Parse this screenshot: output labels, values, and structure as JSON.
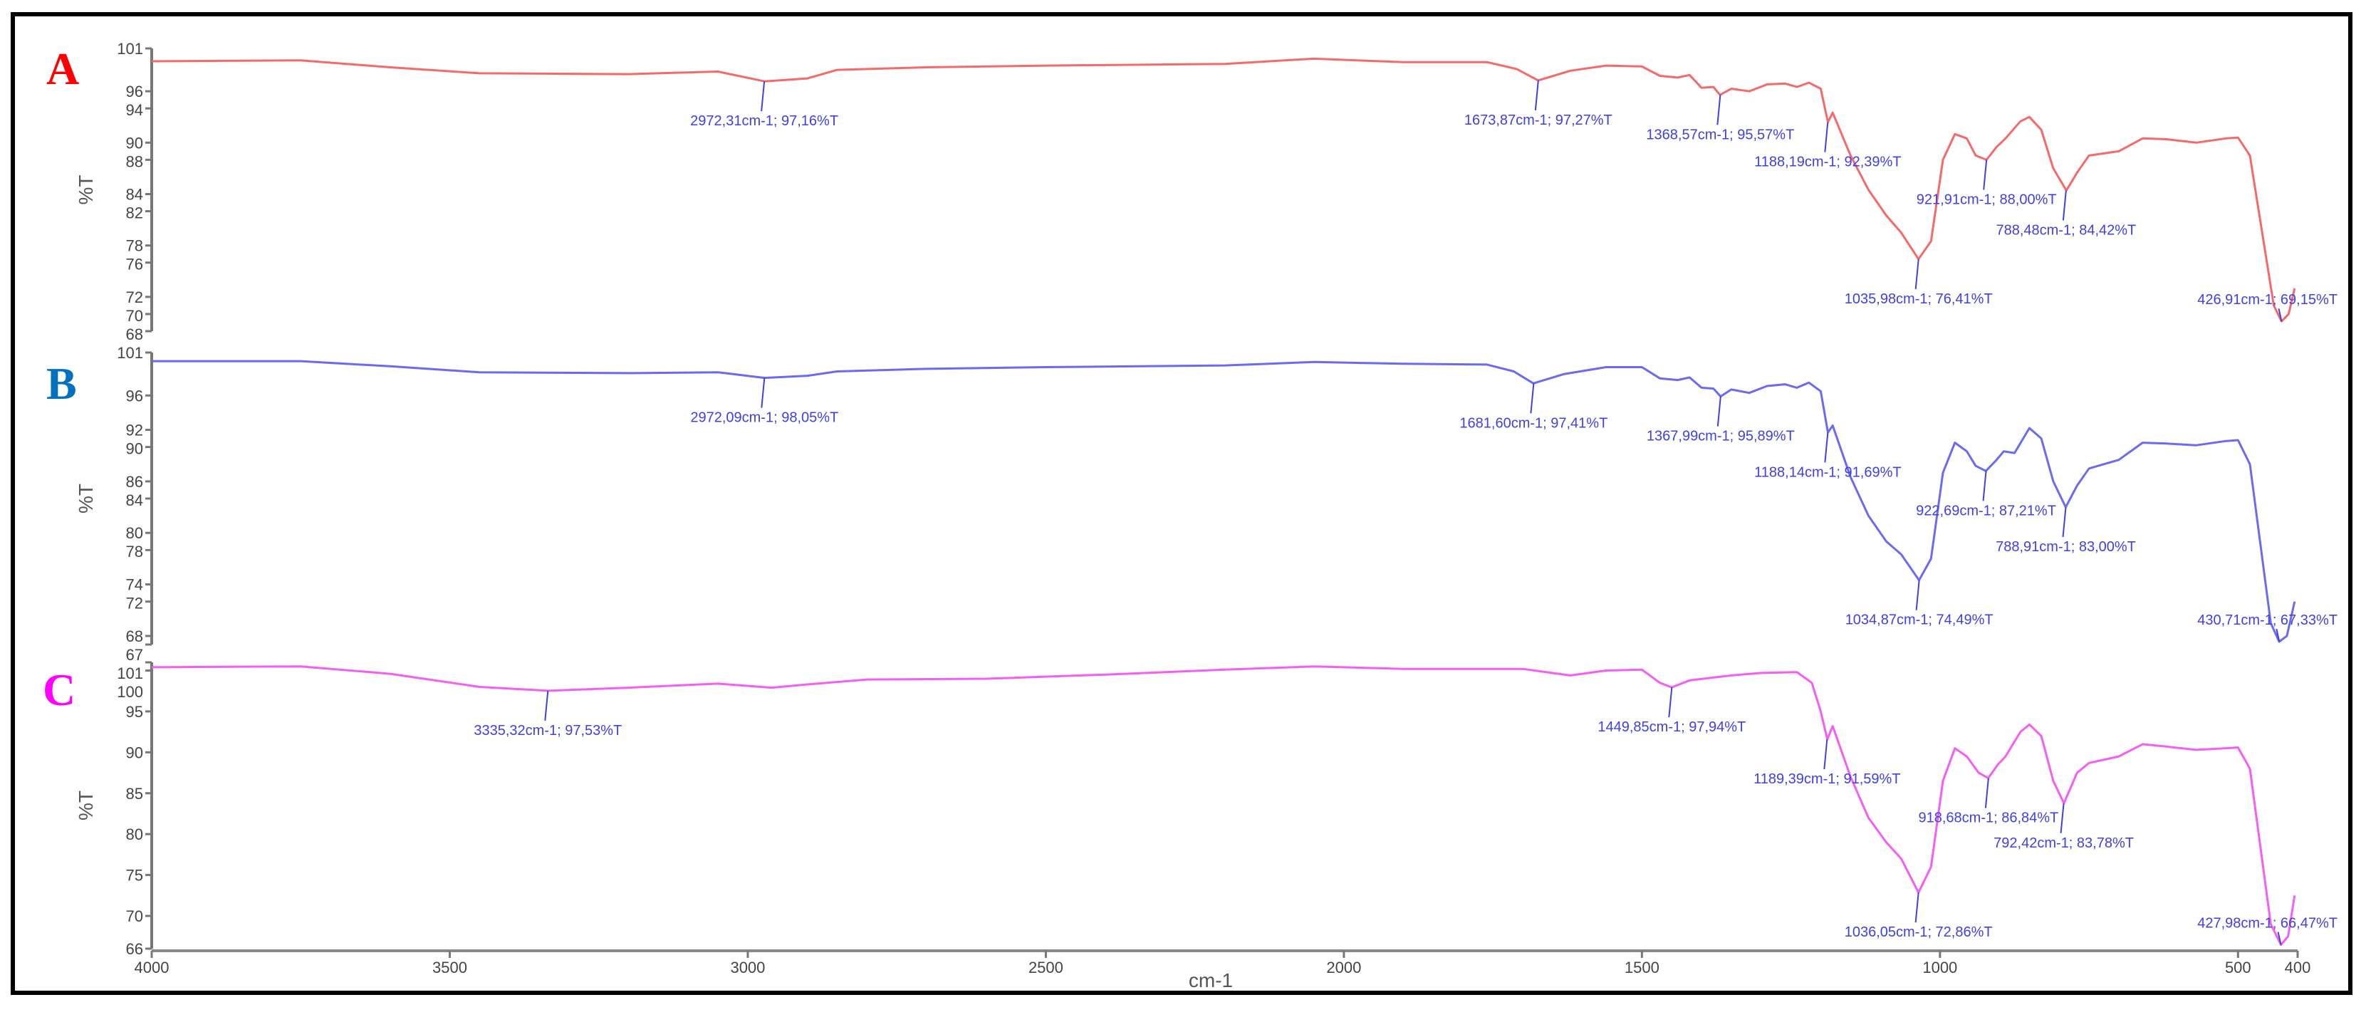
{
  "chart_data": {
    "type": "line",
    "xlabel": "cm-1",
    "xlim": [
      4000,
      400
    ],
    "x_ticks": [
      4000,
      3500,
      3000,
      2500,
      2000,
      1500,
      1000,
      500,
      400
    ],
    "grid": false,
    "panels": [
      {
        "letter": "A",
        "letter_color": "#ff0000",
        "line_color": "#f46a6a",
        "ylabel": "%T",
        "ylim": [
          68,
          101
        ],
        "y_ticks": [
          101,
          96,
          94,
          90,
          88,
          84,
          82,
          78,
          76,
          72,
          70,
          68
        ],
        "points": [
          [
            4000,
            99.5
          ],
          [
            3750,
            99.6
          ],
          [
            3600,
            98.8
          ],
          [
            3450,
            98.1
          ],
          [
            3200,
            98.0
          ],
          [
            3050,
            98.3
          ],
          [
            2972,
            97.16
          ],
          [
            2900,
            97.5
          ],
          [
            2850,
            98.5
          ],
          [
            2700,
            98.8
          ],
          [
            2500,
            99.0
          ],
          [
            2200,
            99.2
          ],
          [
            2050,
            99.8
          ],
          [
            1900,
            99.4
          ],
          [
            1760,
            99.4
          ],
          [
            1710,
            98.6
          ],
          [
            1674,
            97.27
          ],
          [
            1620,
            98.4
          ],
          [
            1560,
            99.0
          ],
          [
            1500,
            98.9
          ],
          [
            1470,
            97.8
          ],
          [
            1440,
            97.6
          ],
          [
            1420,
            97.9
          ],
          [
            1400,
            96.4
          ],
          [
            1380,
            96.5
          ],
          [
            1369,
            95.57
          ],
          [
            1350,
            96.3
          ],
          [
            1320,
            96.0
          ],
          [
            1290,
            96.8
          ],
          [
            1260,
            96.9
          ],
          [
            1240,
            96.5
          ],
          [
            1220,
            97.0
          ],
          [
            1200,
            96.3
          ],
          [
            1188,
            92.39
          ],
          [
            1180,
            93.5
          ],
          [
            1150,
            88.5
          ],
          [
            1120,
            84.5
          ],
          [
            1090,
            81.5
          ],
          [
            1065,
            79.5
          ],
          [
            1036,
            76.41
          ],
          [
            1015,
            78.5
          ],
          [
            995,
            88
          ],
          [
            975,
            91
          ],
          [
            955,
            90.5
          ],
          [
            940,
            88.5
          ],
          [
            922,
            88.0
          ],
          [
            905,
            89.5
          ],
          [
            890,
            90.5
          ],
          [
            865,
            92.5
          ],
          [
            850,
            93.0
          ],
          [
            830,
            91.5
          ],
          [
            810,
            87
          ],
          [
            788,
            84.42
          ],
          [
            770,
            86.5
          ],
          [
            750,
            88.5
          ],
          [
            700,
            89.0
          ],
          [
            660,
            90.5
          ],
          [
            620,
            90.4
          ],
          [
            570,
            90.0
          ],
          [
            520,
            90.5
          ],
          [
            500,
            90.6
          ],
          [
            480,
            88.5
          ],
          [
            440,
            71
          ],
          [
            427,
            69.15
          ],
          [
            415,
            70
          ],
          [
            405,
            73
          ]
        ],
        "peaks": [
          {
            "x": 2972.31,
            "y": 97.16,
            "label": "2972,31cm-1; 97,16%T"
          },
          {
            "x": 1673.87,
            "y": 97.27,
            "label": "1673,87cm-1; 97,27%T"
          },
          {
            "x": 1368.57,
            "y": 95.57,
            "label": "1368,57cm-1; 95,57%T"
          },
          {
            "x": 1188.19,
            "y": 92.39,
            "label": "1188,19cm-1; 92,39%T"
          },
          {
            "x": 1035.98,
            "y": 76.41,
            "label": "1035,98cm-1; 76,41%T"
          },
          {
            "x": 921.91,
            "y": 88.0,
            "label": "921,91cm-1; 88,00%T"
          },
          {
            "x": 788.48,
            "y": 84.42,
            "label": "788,48cm-1; 84,42%T"
          },
          {
            "x": 426.91,
            "y": 69.15,
            "label": "426,91cm-1; 69,15%T"
          }
        ]
      },
      {
        "letter": "B",
        "letter_color": "#0070c0",
        "line_color": "#6a6af2",
        "ylabel": "%T",
        "ylim": [
          67,
          101
        ],
        "y_ticks": [
          101,
          96,
          92,
          90,
          86,
          84,
          80,
          78,
          74,
          72,
          68,
          67
        ],
        "points": [
          [
            4000,
            100.0
          ],
          [
            3750,
            100.0
          ],
          [
            3600,
            99.4
          ],
          [
            3450,
            98.7
          ],
          [
            3200,
            98.6
          ],
          [
            3050,
            98.7
          ],
          [
            2972,
            98.05
          ],
          [
            2900,
            98.3
          ],
          [
            2850,
            98.8
          ],
          [
            2700,
            99.1
          ],
          [
            2500,
            99.3
          ],
          [
            2200,
            99.5
          ],
          [
            2050,
            99.9
          ],
          [
            1900,
            99.7
          ],
          [
            1760,
            99.6
          ],
          [
            1715,
            98.8
          ],
          [
            1682,
            97.41
          ],
          [
            1630,
            98.5
          ],
          [
            1560,
            99.3
          ],
          [
            1500,
            99.3
          ],
          [
            1470,
            98.0
          ],
          [
            1440,
            97.8
          ],
          [
            1420,
            98.1
          ],
          [
            1400,
            96.9
          ],
          [
            1380,
            96.8
          ],
          [
            1368,
            95.89
          ],
          [
            1350,
            96.7
          ],
          [
            1320,
            96.3
          ],
          [
            1290,
            97.1
          ],
          [
            1260,
            97.3
          ],
          [
            1240,
            96.9
          ],
          [
            1220,
            97.5
          ],
          [
            1200,
            96.5
          ],
          [
            1188,
            91.69
          ],
          [
            1180,
            92.5
          ],
          [
            1150,
            86.5
          ],
          [
            1120,
            82
          ],
          [
            1090,
            79
          ],
          [
            1065,
            77.5
          ],
          [
            1035,
            74.49
          ],
          [
            1015,
            77
          ],
          [
            995,
            87
          ],
          [
            975,
            90.5
          ],
          [
            955,
            89.5
          ],
          [
            940,
            87.8
          ],
          [
            923,
            87.21
          ],
          [
            905,
            88.5
          ],
          [
            893,
            89.5
          ],
          [
            875,
            89.3
          ],
          [
            850,
            92.2
          ],
          [
            830,
            91.0
          ],
          [
            810,
            86
          ],
          [
            789,
            83.0
          ],
          [
            770,
            85.5
          ],
          [
            750,
            87.5
          ],
          [
            700,
            88.5
          ],
          [
            660,
            90.5
          ],
          [
            620,
            90.4
          ],
          [
            570,
            90.2
          ],
          [
            520,
            90.7
          ],
          [
            500,
            90.8
          ],
          [
            480,
            88
          ],
          [
            445,
            69.5
          ],
          [
            431,
            67.33
          ],
          [
            418,
            68
          ],
          [
            405,
            72
          ]
        ],
        "peaks": [
          {
            "x": 2972.09,
            "y": 98.05,
            "label": "2972,09cm-1; 98,05%T"
          },
          {
            "x": 1681.6,
            "y": 97.41,
            "label": "1681,60cm-1; 97,41%T"
          },
          {
            "x": 1367.99,
            "y": 95.89,
            "label": "1367,99cm-1; 95,89%T"
          },
          {
            "x": 1188.14,
            "y": 91.69,
            "label": "1188,14cm-1; 91,69%T"
          },
          {
            "x": 1034.87,
            "y": 74.49,
            "label": "1034,87cm-1; 74,49%T"
          },
          {
            "x": 922.69,
            "y": 87.21,
            "label": "922,69cm-1; 87,21%T"
          },
          {
            "x": 788.91,
            "y": 83.0,
            "label": "788,91cm-1; 83,00%T"
          },
          {
            "x": 430.71,
            "y": 67.33,
            "label": "430,71cm-1; 67,33%T"
          }
        ]
      },
      {
        "letter": "C",
        "letter_color": "#ff00ff",
        "line_color": "#f45ef4",
        "ylabel": "%T",
        "ylim": [
          66,
          101
        ],
        "y_ticks": [
          101,
          100,
          95,
          90,
          85,
          80,
          75,
          70,
          66
        ],
        "points": [
          [
            4000,
            100.4
          ],
          [
            3750,
            100.5
          ],
          [
            3600,
            99.6
          ],
          [
            3450,
            98.0
          ],
          [
            3335,
            97.53
          ],
          [
            3200,
            97.9
          ],
          [
            3050,
            98.4
          ],
          [
            2960,
            97.9
          ],
          [
            2900,
            98.3
          ],
          [
            2800,
            98.9
          ],
          [
            2600,
            99.0
          ],
          [
            2400,
            99.5
          ],
          [
            2200,
            100.1
          ],
          [
            2050,
            100.5
          ],
          [
            1900,
            100.2
          ],
          [
            1700,
            100.2
          ],
          [
            1620,
            99.4
          ],
          [
            1560,
            100.0
          ],
          [
            1500,
            100.1
          ],
          [
            1470,
            98.5
          ],
          [
            1450,
            97.94
          ],
          [
            1420,
            98.8
          ],
          [
            1350,
            99.4
          ],
          [
            1300,
            99.7
          ],
          [
            1240,
            99.8
          ],
          [
            1215,
            98.5
          ],
          [
            1200,
            95
          ],
          [
            1189,
            91.59
          ],
          [
            1180,
            93.2
          ],
          [
            1150,
            87
          ],
          [
            1120,
            82
          ],
          [
            1090,
            79
          ],
          [
            1065,
            77
          ],
          [
            1036,
            72.86
          ],
          [
            1015,
            76
          ],
          [
            995,
            86.5
          ],
          [
            975,
            90.5
          ],
          [
            955,
            89.5
          ],
          [
            935,
            87.5
          ],
          [
            919,
            86.84
          ],
          [
            903,
            88.5
          ],
          [
            890,
            89.5
          ],
          [
            865,
            92.5
          ],
          [
            850,
            93.4
          ],
          [
            830,
            92
          ],
          [
            810,
            86.5
          ],
          [
            792,
            83.78
          ],
          [
            770,
            87.5
          ],
          [
            750,
            88.7
          ],
          [
            700,
            89.5
          ],
          [
            660,
            91.0
          ],
          [
            620,
            90.7
          ],
          [
            570,
            90.3
          ],
          [
            520,
            90.5
          ],
          [
            500,
            90.6
          ],
          [
            480,
            88
          ],
          [
            445,
            69
          ],
          [
            428,
            66.47
          ],
          [
            416,
            67.5
          ],
          [
            405,
            72.5
          ]
        ],
        "peaks": [
          {
            "x": 3335.32,
            "y": 97.53,
            "label": "3335,32cm-1; 97,53%T"
          },
          {
            "x": 1449.85,
            "y": 97.94,
            "label": "1449,85cm-1; 97,94%T"
          },
          {
            "x": 1189.39,
            "y": 91.59,
            "label": "1189,39cm-1; 91,59%T"
          },
          {
            "x": 1036.05,
            "y": 72.86,
            "label": "1036,05cm-1; 72,86%T"
          },
          {
            "x": 918.68,
            "y": 86.84,
            "label": "918,68cm-1; 86,84%T"
          },
          {
            "x": 792.42,
            "y": 83.78,
            "label": "792,42cm-1; 83,78%T"
          },
          {
            "x": 427.98,
            "y": 66.47,
            "label": "427,98cm-1; 66,47%T"
          }
        ]
      }
    ]
  }
}
